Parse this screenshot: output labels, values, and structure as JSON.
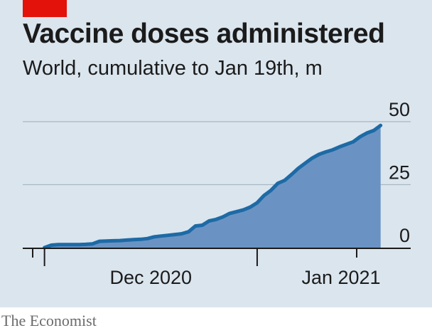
{
  "brand": {
    "accent_color": "#e3120b",
    "footer": "The Economist"
  },
  "colors": {
    "line": "#1d6aa6",
    "fill": "#6a93c3",
    "grid": "#a8b8c5",
    "panel": "#dbe5ee"
  },
  "chart_data": {
    "type": "area",
    "title": "Vaccine doses administered",
    "subtitle": "World, cumulative to Jan 19th, m",
    "xlabel": "",
    "ylabel": "",
    "x_tick_labels": [
      "Dec 2020",
      "Jan 2021"
    ],
    "y_ticks": [
      0,
      25,
      50
    ],
    "ylim": [
      0,
      50
    ],
    "xlim": [
      "2020-11-27",
      "2021-01-24"
    ],
    "grid": true,
    "y_axis_side": "right",
    "series": [
      {
        "x": [
          "2020-12-01",
          "2020-12-02",
          "2020-12-03",
          "2020-12-04",
          "2020-12-05",
          "2020-12-06",
          "2020-12-07",
          "2020-12-08",
          "2020-12-09",
          "2020-12-10",
          "2020-12-11",
          "2020-12-12",
          "2020-12-13",
          "2020-12-14",
          "2020-12-15",
          "2020-12-16",
          "2020-12-17",
          "2020-12-18",
          "2020-12-19",
          "2020-12-20",
          "2020-12-21",
          "2020-12-22",
          "2020-12-23",
          "2020-12-24",
          "2020-12-25",
          "2020-12-26",
          "2020-12-27",
          "2020-12-28",
          "2020-12-29",
          "2020-12-30",
          "2020-12-31",
          "2021-01-01",
          "2021-01-02",
          "2021-01-03",
          "2021-01-04",
          "2021-01-05",
          "2021-01-06",
          "2021-01-07",
          "2021-01-08",
          "2021-01-09",
          "2021-01-10",
          "2021-01-11",
          "2021-01-12",
          "2021-01-13",
          "2021-01-14",
          "2021-01-15",
          "2021-01-16",
          "2021-01-17",
          "2021-01-18",
          "2021-01-19"
        ],
        "values": [
          0.0,
          1.0,
          1.2,
          1.2,
          1.2,
          1.2,
          1.3,
          1.5,
          2.5,
          2.6,
          2.7,
          2.8,
          3.0,
          3.2,
          3.3,
          3.6,
          4.3,
          4.6,
          4.9,
          5.2,
          5.5,
          6.3,
          8.6,
          8.9,
          10.6,
          11.2,
          12.2,
          13.6,
          14.3,
          15.0,
          16.1,
          17.8,
          20.7,
          22.7,
          25.5,
          26.7,
          29.0,
          31.5,
          33.5,
          35.5,
          37.0,
          38.0,
          38.8,
          40.0,
          41.0,
          42.0,
          44.0,
          45.5,
          46.5,
          48.5
        ]
      }
    ]
  }
}
